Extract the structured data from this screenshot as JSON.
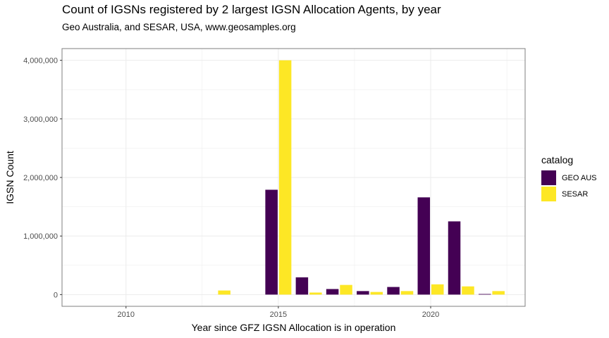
{
  "chart_data": {
    "type": "bar",
    "title": "Count of IGSNs registered by 2 largest IGSN Allocation Agents, by year",
    "subtitle": "Geo Australia, and SESAR, USA, www.geosamples.org",
    "xlabel": "Year since GFZ IGSN Allocation is in operation",
    "ylabel": "IGSN Count",
    "x_ticks": [
      2010,
      2015,
      2020
    ],
    "xlim": [
      2007.9,
      2023.1
    ],
    "y_ticks": [
      0,
      1000000,
      2000000,
      3000000,
      4000000
    ],
    "y_tick_labels": [
      "0",
      "1,000,000",
      "2,000,000",
      "3,000,000",
      "4,000,000"
    ],
    "ylim": [
      -200000,
      4200000
    ],
    "grid": true,
    "legend_title": "catalog",
    "legend_position": "right",
    "series": [
      {
        "name": "GEO AUS",
        "color": "#440154",
        "points": [
          {
            "x": 2015,
            "y": 1790000
          },
          {
            "x": 2016,
            "y": 295000
          },
          {
            "x": 2017,
            "y": 95000
          },
          {
            "x": 2018,
            "y": 60000
          },
          {
            "x": 2019,
            "y": 130000
          },
          {
            "x": 2020,
            "y": 1660000
          },
          {
            "x": 2021,
            "y": 1250000
          },
          {
            "x": 2022,
            "y": 10000
          }
        ]
      },
      {
        "name": "SESAR",
        "color": "#FDE725",
        "points": [
          {
            "x": 2013,
            "y": 70000
          },
          {
            "x": 2015,
            "y": 4000000
          },
          {
            "x": 2016,
            "y": 35000
          },
          {
            "x": 2017,
            "y": 165000
          },
          {
            "x": 2018,
            "y": 45000
          },
          {
            "x": 2019,
            "y": 60000
          },
          {
            "x": 2020,
            "y": 175000
          },
          {
            "x": 2021,
            "y": 140000
          },
          {
            "x": 2022,
            "y": 60000
          }
        ]
      }
    ]
  }
}
